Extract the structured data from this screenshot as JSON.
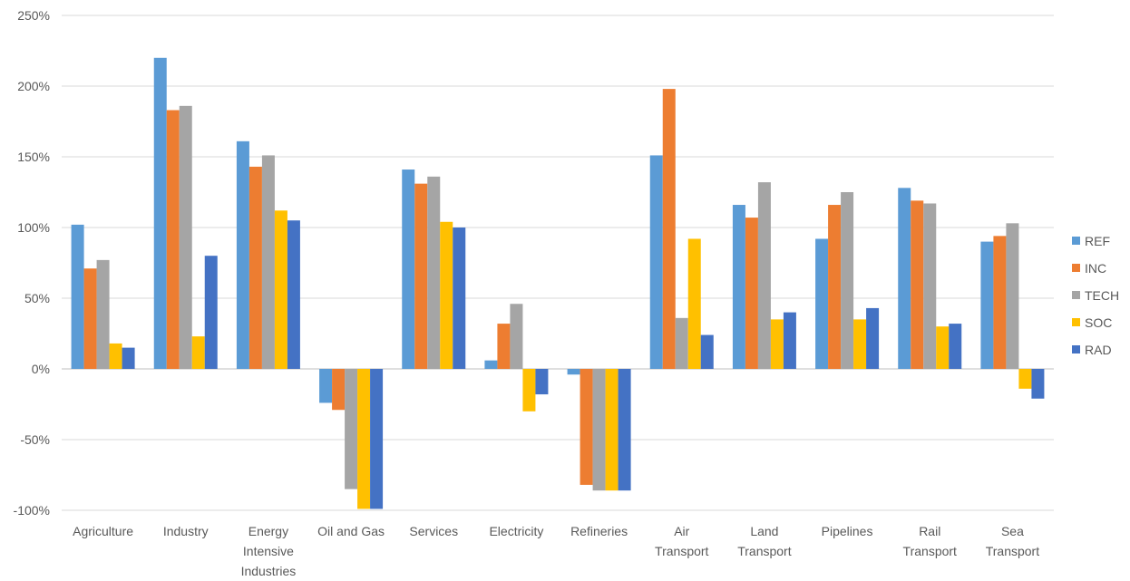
{
  "chart_data": {
    "type": "bar",
    "title": "",
    "xlabel": "",
    "ylabel": "",
    "ylim": [
      -100,
      250
    ],
    "y_ticks": [
      "250%",
      "200%",
      "150%",
      "100%",
      "50%",
      "0%",
      "-50%",
      "-100%"
    ],
    "y_tick_values": [
      250,
      200,
      150,
      100,
      50,
      0,
      -50,
      -100
    ],
    "grid": true,
    "legend_position": "right",
    "categories": [
      [
        "Agriculture"
      ],
      [
        "Industry"
      ],
      [
        "Energy",
        "Intensive",
        "Industries"
      ],
      [
        "Oil and Gas"
      ],
      [
        "Services"
      ],
      [
        "Electricity"
      ],
      [
        "Refineries"
      ],
      [
        "Air",
        "Transport"
      ],
      [
        "Land",
        "Transport"
      ],
      [
        "Pipelines"
      ],
      [
        "Rail",
        "Transport"
      ],
      [
        "Sea",
        "Transport"
      ]
    ],
    "series": [
      {
        "name": "REF",
        "color": "#5B9BD5",
        "values": [
          102,
          220,
          161,
          -24,
          141,
          6,
          -4,
          151,
          116,
          92,
          128,
          90
        ]
      },
      {
        "name": "INC",
        "color": "#ED7D31",
        "values": [
          71,
          183,
          143,
          -29,
          131,
          32,
          -82,
          198,
          107,
          116,
          119,
          94
        ]
      },
      {
        "name": "TECH",
        "color": "#A5A5A5",
        "values": [
          77,
          186,
          151,
          -85,
          136,
          46,
          -86,
          36,
          132,
          125,
          117,
          103
        ]
      },
      {
        "name": "SOC",
        "color": "#FFC000",
        "values": [
          18,
          23,
          112,
          -99,
          104,
          -30,
          -86,
          92,
          35,
          35,
          30,
          -14
        ]
      },
      {
        "name": "RAD",
        "color": "#4472C4",
        "values": [
          15,
          80,
          105,
          -99,
          100,
          -18,
          -86,
          24,
          40,
          43,
          32,
          -21
        ]
      }
    ]
  }
}
